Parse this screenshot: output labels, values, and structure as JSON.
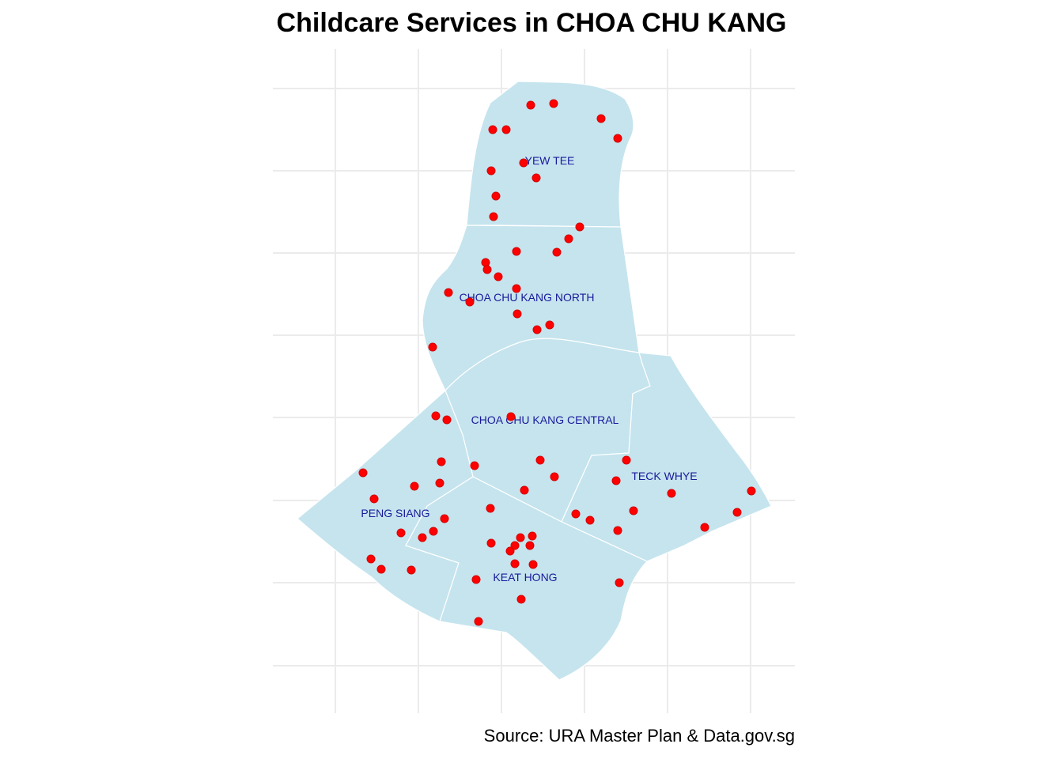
{
  "title": "Childcare Services in CHOA CHU KANG",
  "caption": "Source: URA Master Plan & Data.gov.sg",
  "colors": {
    "region_fill": "#c5e4ee",
    "region_border": "#ffffff",
    "point_fill": "#ff0000",
    "label_text": "#1a1a9a",
    "grid": "#ebebeb"
  },
  "regions": [
    {
      "name": "YEW TEE",
      "label": "YEW TEE"
    },
    {
      "name": "CHOA CHU KANG NORTH",
      "label": "CHOA CHU KANG NORTH"
    },
    {
      "name": "CHOA CHU KANG CENTRAL",
      "label": "CHOA CHU KANG CENTRAL"
    },
    {
      "name": "TECK WHYE",
      "label": "TECK WHYE"
    },
    {
      "name": "PENG SIANG",
      "label": "PENG SIANG"
    },
    {
      "name": "KEAT HONG",
      "label": "KEAT HONG"
    }
  ],
  "childcare_count": 62
}
